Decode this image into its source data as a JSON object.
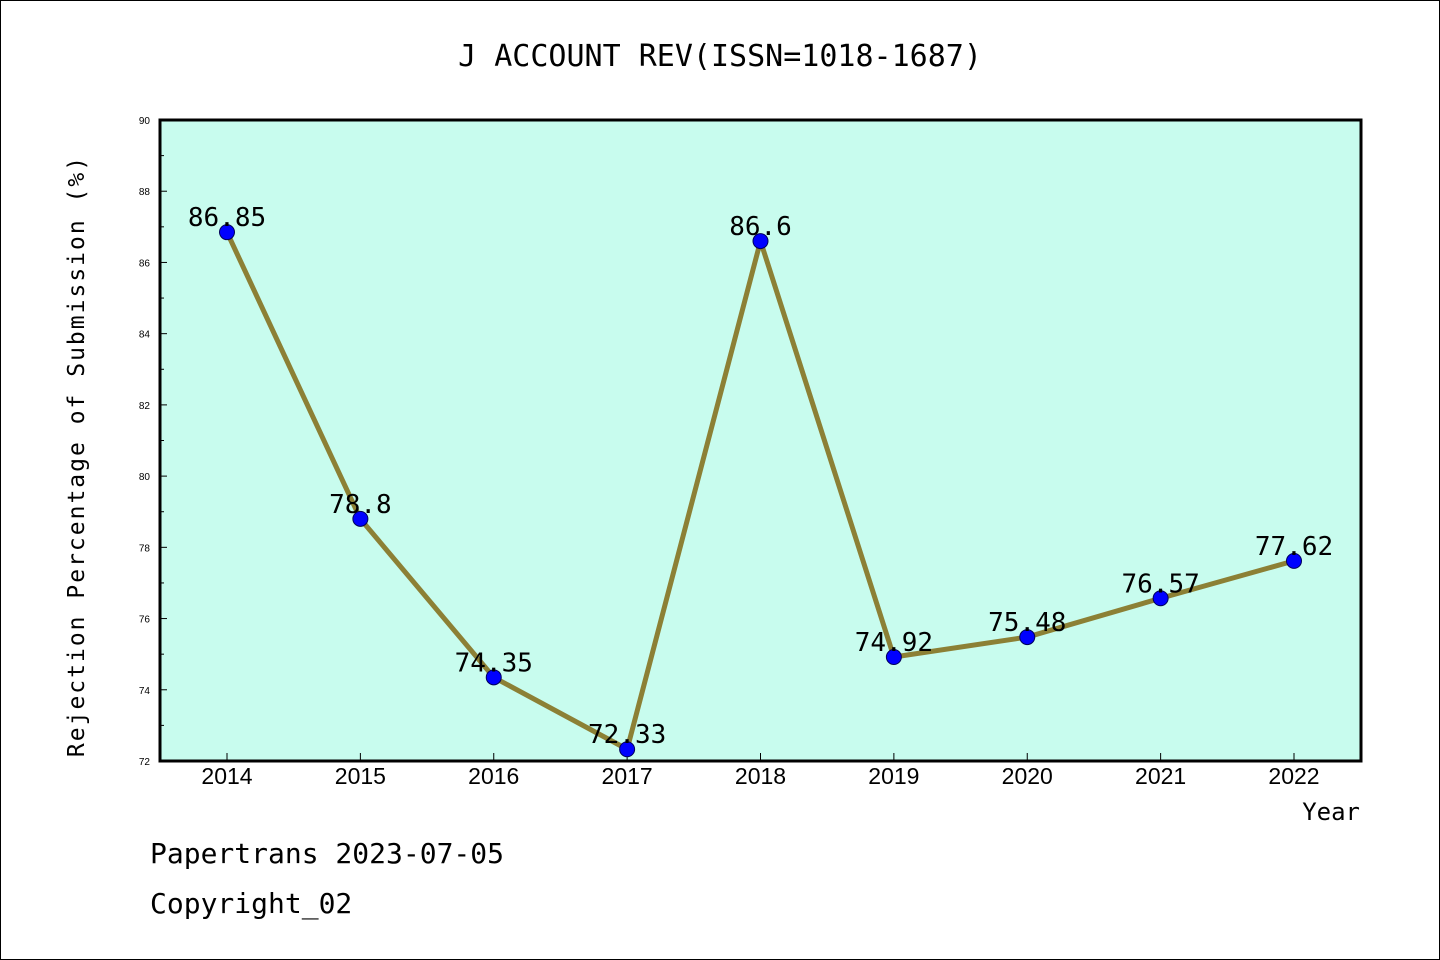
{
  "chart_data": {
    "type": "line",
    "title": "J ACCOUNT REV(ISSN=1018-1687)",
    "xlabel": "Year",
    "ylabel": "Rejection Percentage of Submission (%)",
    "x": [
      "2014",
      "2015",
      "2016",
      "2017",
      "2018",
      "2019",
      "2020",
      "2021",
      "2022"
    ],
    "series": [
      {
        "values": [
          86.85,
          78.8,
          74.35,
          72.33,
          86.6,
          74.92,
          75.48,
          76.57,
          77.62
        ],
        "labels": [
          "86.85",
          "78.8",
          "74.35",
          "72.33",
          "86.6",
          "74.92",
          "75.48",
          "76.57",
          "77.62"
        ]
      }
    ],
    "ylim": [
      72,
      90
    ],
    "yticks": [
      "72",
      "74",
      "76",
      "78",
      "80",
      "82",
      "84",
      "86",
      "88",
      "90"
    ],
    "grid": false,
    "colors": {
      "plot_background": "#c8fcee",
      "line": "#8c8035",
      "marker": "#0000ff"
    }
  },
  "footer": {
    "line1": "Papertrans 2023-07-05",
    "line2": "Copyright_02"
  }
}
